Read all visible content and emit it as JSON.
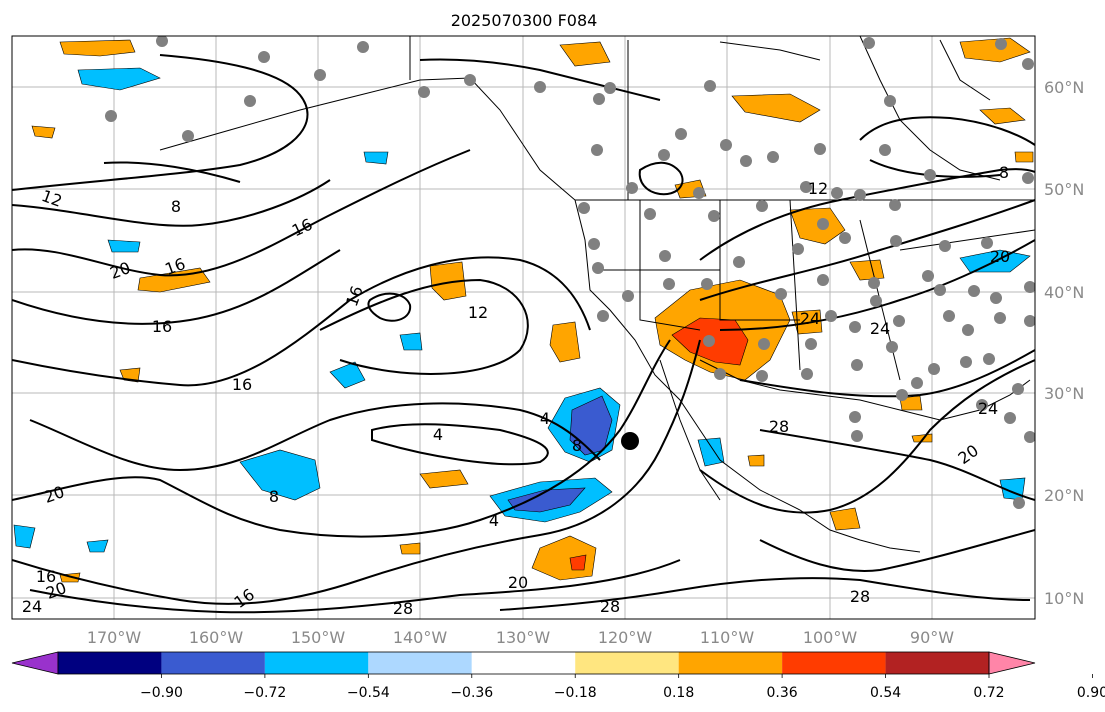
{
  "title": "2025070300 F084",
  "lon_ticks": [
    "170°W",
    "160°W",
    "150°W",
    "140°W",
    "130°W",
    "120°W",
    "110°W",
    "100°W",
    "90°W"
  ],
  "lat_ticks": [
    "60°N",
    "50°N",
    "40°N",
    "30°N",
    "20°N",
    "10°N"
  ],
  "colorbar": {
    "colors": [
      "#9932cc",
      "#000080",
      "#3a5bd0",
      "#00bfff",
      "#add8ff",
      "#ffffff",
      "#ffe680",
      "#ffa500",
      "#ff3c00",
      "#b22222",
      "#ff85a8"
    ],
    "labels": [
      "−0.90",
      "−0.72",
      "−0.54",
      "−0.36",
      "−0.18",
      "0.18",
      "0.36",
      "0.54",
      "0.72",
      "0.90"
    ],
    "extend": "both"
  },
  "contour_labels": [
    "12",
    "8",
    "16",
    "20",
    "16",
    "16",
    "16",
    "16",
    "12",
    "4",
    "4",
    "8",
    "20",
    "16",
    "24",
    "28",
    "28",
    "28",
    "20",
    "24",
    "24",
    "28",
    "20",
    "12",
    "8",
    "24",
    "16",
    "4",
    "8",
    "20",
    "20"
  ],
  "marker": "black-dot"
}
